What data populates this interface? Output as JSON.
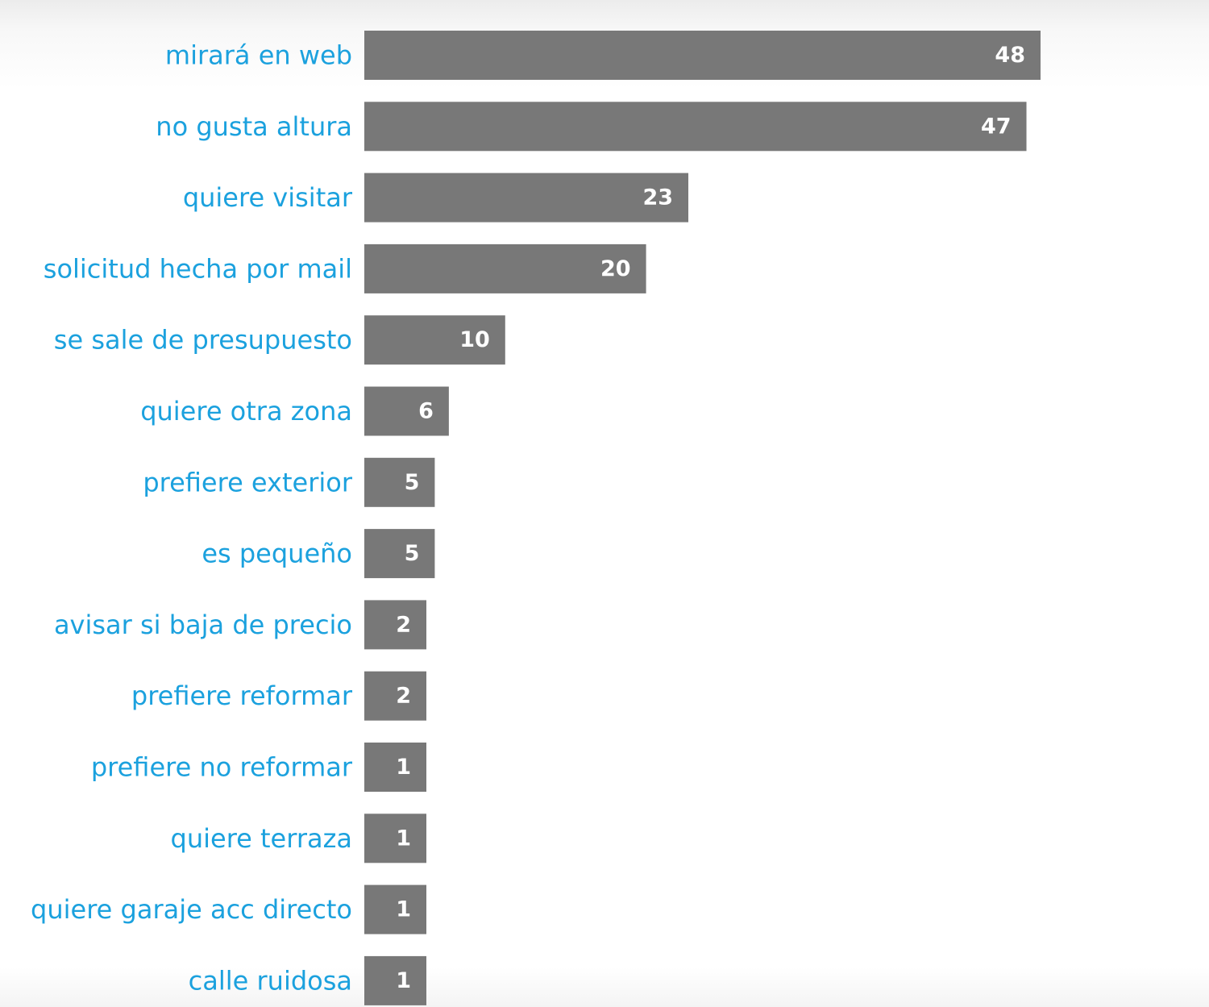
{
  "colors": {
    "bar": "#787878",
    "label": "#1ba1de",
    "value_text": "#ffffff"
  },
  "chart_data": {
    "type": "bar",
    "orientation": "horizontal",
    "title": "",
    "xlabel": "",
    "ylabel": "",
    "categories": [
      "mirará en web",
      "no gusta altura",
      "quiere visitar",
      "solicitud hecha por mail",
      "se sale de presupuesto",
      "quiere otra zona",
      "prefiere exterior",
      "es pequeño",
      "avisar si baja de precio",
      "prefiere reformar",
      "prefiere no reformar",
      "quiere terraza",
      "quiere garaje acc directo",
      "calle ruidosa"
    ],
    "values": [
      48,
      47,
      23,
      20,
      10,
      6,
      5,
      5,
      2,
      2,
      1,
      1,
      1,
      1
    ],
    "data_labels": [
      "48",
      "47",
      "23",
      "20",
      "10",
      "6",
      "5",
      "5",
      "2",
      "2",
      "1",
      "1",
      "1",
      "1"
    ],
    "xlim": [
      0,
      48
    ],
    "grid": false,
    "legend": "none"
  }
}
